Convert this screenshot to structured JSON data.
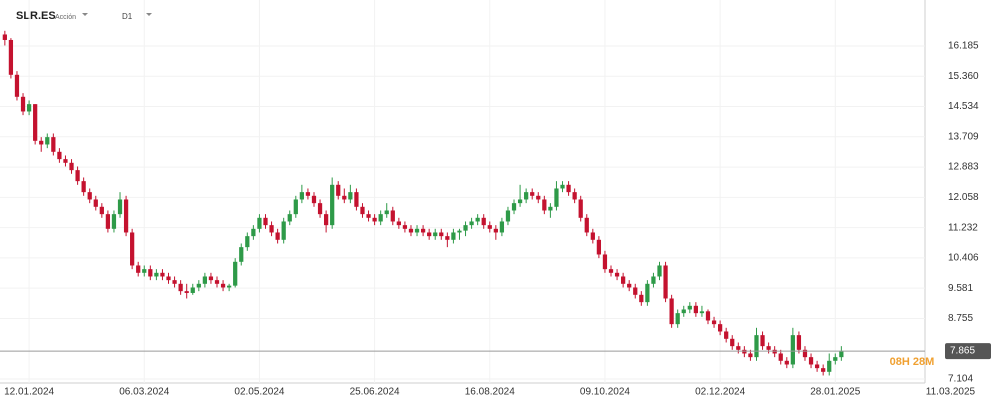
{
  "chart_data": {
    "type": "candlestick",
    "symbol": "SLR.ES",
    "instrument": "Acción",
    "timeframe": "D1",
    "up_color": "#2e9a48",
    "down_color": "#c4122f",
    "grid": true,
    "xlim": [
      -0.8,
      151.8
    ],
    "xticks": [
      {
        "value": 4,
        "label": "12.01.2024"
      },
      {
        "value": 23,
        "label": "06.03.2024"
      },
      {
        "value": 42,
        "label": "02.05.2024"
      },
      {
        "value": 61,
        "label": "25.06.2024"
      },
      {
        "value": 80,
        "label": "16.08.2024"
      },
      {
        "value": 99,
        "label": "09.10.2024"
      },
      {
        "value": 118,
        "label": "02.12.2024"
      },
      {
        "value": 137,
        "label": "28.01.2025"
      },
      {
        "value": 156,
        "label": "11.03.2025"
      }
    ],
    "ylim": [
      6.995,
      17.44
    ],
    "yticks": [
      16.185,
      {
        "value": 15.36,
        "label": "15.360"
      },
      14.534,
      13.709,
      12.883,
      12.058,
      11.232,
      10.406,
      9.581,
      8.755,
      7.104
    ],
    "last_price": 7.865,
    "countdown": "08H 28M",
    "ohlc": [
      [
        16.5,
        16.6,
        16.2,
        16.35
      ],
      [
        16.35,
        16.4,
        15.3,
        15.4
      ],
      [
        15.4,
        15.5,
        14.7,
        14.8
      ],
      [
        14.8,
        14.9,
        14.3,
        14.4
      ],
      [
        14.4,
        14.7,
        14.3,
        14.6
      ],
      [
        14.6,
        14.6,
        13.5,
        13.6
      ],
      [
        13.6,
        13.7,
        13.3,
        13.5
      ],
      [
        13.5,
        13.8,
        13.4,
        13.7
      ],
      [
        13.7,
        13.8,
        13.2,
        13.3
      ],
      [
        13.3,
        13.4,
        13.0,
        13.1
      ],
      [
        13.1,
        13.2,
        12.9,
        13.0
      ],
      [
        13.0,
        13.1,
        12.7,
        12.8
      ],
      [
        12.8,
        12.9,
        12.4,
        12.5
      ],
      [
        12.5,
        12.6,
        12.1,
        12.2
      ],
      [
        12.2,
        12.3,
        11.9,
        12.0
      ],
      [
        12.0,
        12.1,
        11.7,
        11.8
      ],
      [
        11.8,
        11.9,
        11.5,
        11.6
      ],
      [
        11.6,
        11.7,
        11.1,
        11.2
      ],
      [
        11.2,
        11.7,
        11.1,
        11.6
      ],
      [
        11.6,
        12.2,
        11.5,
        12.0
      ],
      [
        12.0,
        12.1,
        11.0,
        11.1
      ],
      [
        11.1,
        11.2,
        10.1,
        10.2
      ],
      [
        10.2,
        10.3,
        9.9,
        10.0
      ],
      [
        10.0,
        10.2,
        9.9,
        10.1
      ],
      [
        10.1,
        10.2,
        9.8,
        9.9
      ],
      [
        9.9,
        10.1,
        9.8,
        10.0
      ],
      [
        10.0,
        10.1,
        9.8,
        9.9
      ],
      [
        9.9,
        10.0,
        9.7,
        9.8
      ],
      [
        9.8,
        9.9,
        9.6,
        9.7
      ],
      [
        9.7,
        9.8,
        9.4,
        9.5
      ],
      [
        9.5,
        9.7,
        9.3,
        9.45
      ],
      [
        9.45,
        9.7,
        9.4,
        9.6
      ],
      [
        9.6,
        9.8,
        9.5,
        9.7
      ],
      [
        9.7,
        10.0,
        9.6,
        9.9
      ],
      [
        9.9,
        10.0,
        9.7,
        9.8
      ],
      [
        9.8,
        9.9,
        9.6,
        9.7
      ],
      [
        9.7,
        9.8,
        9.5,
        9.6
      ],
      [
        9.6,
        9.7,
        9.5,
        9.65
      ],
      [
        9.65,
        10.4,
        9.6,
        10.3
      ],
      [
        10.3,
        10.8,
        10.2,
        10.7
      ],
      [
        10.7,
        11.1,
        10.6,
        11.0
      ],
      [
        11.0,
        11.3,
        10.9,
        11.2
      ],
      [
        11.2,
        11.6,
        11.1,
        11.5
      ],
      [
        11.5,
        11.6,
        11.2,
        11.3
      ],
      [
        11.3,
        11.4,
        11.0,
        11.1
      ],
      [
        11.1,
        11.2,
        10.8,
        10.9
      ],
      [
        10.9,
        11.5,
        10.8,
        11.4
      ],
      [
        11.4,
        11.7,
        11.3,
        11.6
      ],
      [
        11.6,
        12.1,
        11.5,
        12.0
      ],
      [
        12.0,
        12.4,
        11.9,
        12.2
      ],
      [
        12.2,
        12.3,
        12.0,
        12.1
      ],
      [
        12.1,
        12.2,
        11.8,
        11.9
      ],
      [
        11.9,
        12.0,
        11.5,
        11.6
      ],
      [
        11.6,
        11.7,
        11.1,
        11.3
      ],
      [
        11.3,
        12.6,
        11.2,
        12.4
      ],
      [
        12.4,
        12.5,
        12.0,
        12.1
      ],
      [
        12.1,
        12.3,
        11.9,
        12.0
      ],
      [
        12.0,
        12.4,
        11.9,
        12.2
      ],
      [
        12.2,
        12.3,
        11.7,
        11.8
      ],
      [
        11.8,
        11.9,
        11.5,
        11.6
      ],
      [
        11.6,
        11.7,
        11.4,
        11.5
      ],
      [
        11.5,
        11.6,
        11.3,
        11.4
      ],
      [
        11.4,
        11.7,
        11.3,
        11.6
      ],
      [
        11.6,
        11.9,
        11.5,
        11.7
      ],
      [
        11.7,
        11.8,
        11.3,
        11.4
      ],
      [
        11.4,
        11.5,
        11.2,
        11.3
      ],
      [
        11.3,
        11.4,
        11.1,
        11.2
      ],
      [
        11.2,
        11.3,
        11.0,
        11.1
      ],
      [
        11.1,
        11.3,
        11.0,
        11.2
      ],
      [
        11.2,
        11.3,
        11.0,
        11.1
      ],
      [
        11.1,
        11.2,
        10.9,
        11.0
      ],
      [
        11.0,
        11.2,
        10.9,
        11.1
      ],
      [
        11.1,
        11.2,
        10.9,
        11.0
      ],
      [
        11.0,
        11.1,
        10.7,
        10.9
      ],
      [
        10.9,
        11.2,
        10.8,
        11.1
      ],
      [
        11.1,
        11.2,
        10.9,
        11.15
      ],
      [
        11.15,
        11.4,
        11.0,
        11.3
      ],
      [
        11.3,
        11.5,
        11.2,
        11.4
      ],
      [
        11.4,
        11.6,
        11.3,
        11.5
      ],
      [
        11.5,
        11.6,
        11.2,
        11.3
      ],
      [
        11.3,
        11.4,
        11.1,
        11.2
      ],
      [
        11.2,
        11.3,
        10.9,
        11.1
      ],
      [
        11.1,
        11.5,
        11.0,
        11.4
      ],
      [
        11.4,
        11.8,
        11.3,
        11.7
      ],
      [
        11.7,
        12.0,
        11.6,
        11.9
      ],
      [
        11.9,
        12.4,
        11.8,
        12.0
      ],
      [
        12.0,
        12.3,
        11.9,
        12.2
      ],
      [
        12.2,
        12.3,
        12.0,
        12.1
      ],
      [
        12.1,
        12.2,
        11.9,
        12.0
      ],
      [
        12.0,
        12.1,
        11.6,
        11.7
      ],
      [
        11.7,
        11.9,
        11.5,
        11.8
      ],
      [
        11.8,
        12.5,
        11.7,
        12.3
      ],
      [
        12.3,
        12.5,
        12.2,
        12.4
      ],
      [
        12.4,
        12.5,
        12.1,
        12.2
      ],
      [
        12.2,
        12.3,
        11.9,
        12.0
      ],
      [
        12.0,
        12.1,
        11.4,
        11.5
      ],
      [
        11.5,
        11.6,
        11.0,
        11.1
      ],
      [
        11.1,
        11.2,
        10.8,
        10.9
      ],
      [
        10.9,
        11.0,
        10.4,
        10.5
      ],
      [
        10.5,
        10.6,
        10.0,
        10.1
      ],
      [
        10.1,
        10.2,
        9.9,
        10.0
      ],
      [
        10.0,
        10.1,
        9.8,
        9.9
      ],
      [
        9.9,
        10.0,
        9.6,
        9.7
      ],
      [
        9.7,
        9.8,
        9.5,
        9.6
      ],
      [
        9.6,
        9.7,
        9.3,
        9.4
      ],
      [
        9.4,
        9.5,
        9.1,
        9.2
      ],
      [
        9.2,
        9.8,
        9.1,
        9.7
      ],
      [
        9.7,
        10.0,
        9.6,
        9.9
      ],
      [
        9.9,
        10.3,
        9.8,
        10.2
      ],
      [
        10.2,
        10.3,
        9.2,
        9.3
      ],
      [
        9.3,
        9.4,
        8.5,
        8.6
      ],
      [
        8.6,
        9.0,
        8.5,
        8.9
      ],
      [
        8.9,
        9.1,
        8.8,
        9.0
      ],
      [
        9.0,
        9.2,
        8.9,
        9.1
      ],
      [
        9.1,
        9.2,
        8.8,
        8.9
      ],
      [
        8.9,
        9.1,
        8.8,
        8.95
      ],
      [
        8.95,
        9.0,
        8.6,
        8.7
      ],
      [
        8.7,
        8.8,
        8.5,
        8.6
      ],
      [
        8.6,
        8.7,
        8.3,
        8.4
      ],
      [
        8.4,
        8.5,
        8.1,
        8.2
      ],
      [
        8.2,
        8.3,
        7.9,
        8.0
      ],
      [
        8.0,
        8.1,
        7.8,
        7.9
      ],
      [
        7.9,
        8.0,
        7.7,
        7.8
      ],
      [
        7.8,
        7.9,
        7.6,
        7.7
      ],
      [
        7.7,
        8.5,
        7.6,
        8.3
      ],
      [
        8.3,
        8.4,
        7.9,
        8.0
      ],
      [
        8.0,
        8.1,
        7.8,
        7.9
      ],
      [
        7.9,
        8.0,
        7.7,
        7.8
      ],
      [
        7.8,
        7.9,
        7.5,
        7.6
      ],
      [
        7.6,
        7.7,
        7.4,
        7.5
      ],
      [
        7.5,
        8.5,
        7.4,
        8.3
      ],
      [
        8.3,
        8.4,
        7.8,
        7.9
      ],
      [
        7.9,
        8.0,
        7.6,
        7.7
      ],
      [
        7.7,
        7.8,
        7.4,
        7.5
      ],
      [
        7.5,
        7.6,
        7.3,
        7.4
      ],
      [
        7.4,
        7.5,
        7.2,
        7.3
      ],
      [
        7.3,
        7.8,
        7.2,
        7.6
      ],
      [
        7.6,
        7.8,
        7.5,
        7.7
      ],
      [
        7.7,
        8.0,
        7.6,
        7.87
      ]
    ]
  }
}
